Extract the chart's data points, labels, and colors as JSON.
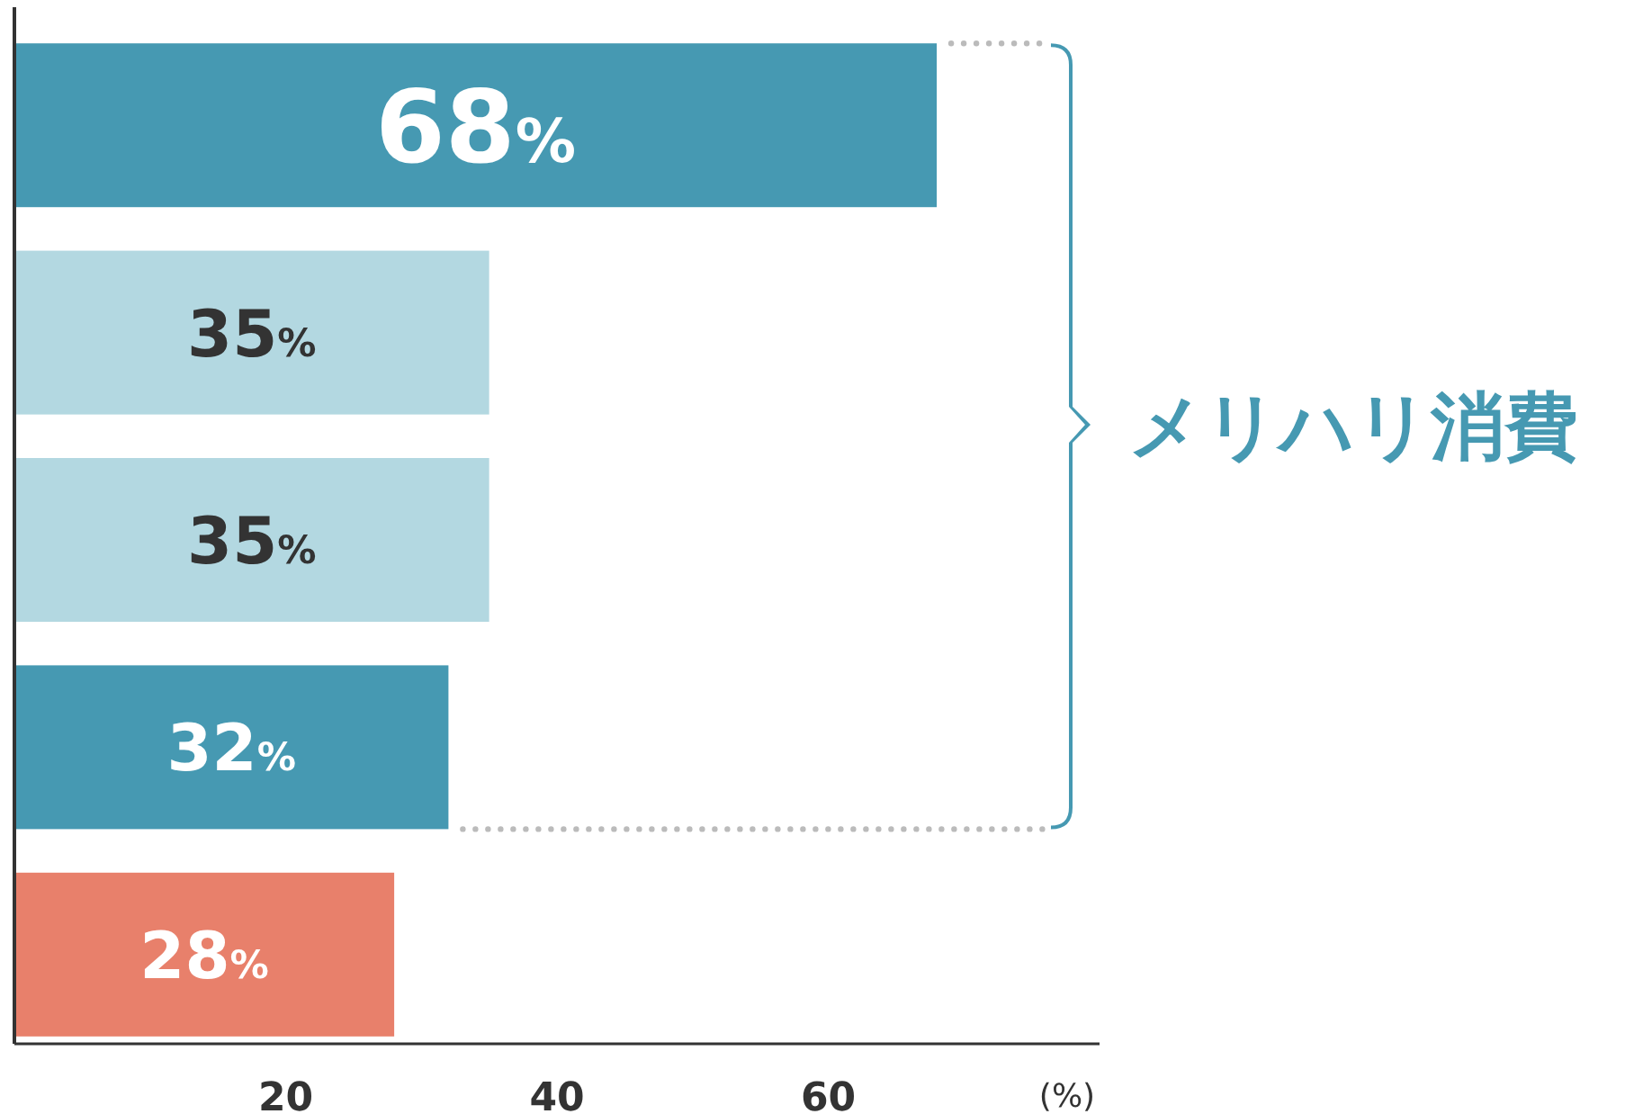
{
  "chart_data": {
    "type": "bar",
    "orientation": "horizontal",
    "categories": [
      null,
      null,
      null,
      null,
      null
    ],
    "values": [
      68,
      35,
      35,
      32,
      28
    ],
    "colors": [
      "#4699b2",
      "#b3d8e1",
      "#b3d8e1",
      "#4699b2",
      "#e8806b"
    ],
    "value_labels": [
      "68%",
      "35%",
      "35%",
      "32%",
      "28%"
    ],
    "xlim": [
      0,
      80
    ],
    "xticks": [
      20,
      40,
      60
    ],
    "xlabel": "(%)",
    "annotations": [
      "メリハリ消費"
    ]
  }
}
